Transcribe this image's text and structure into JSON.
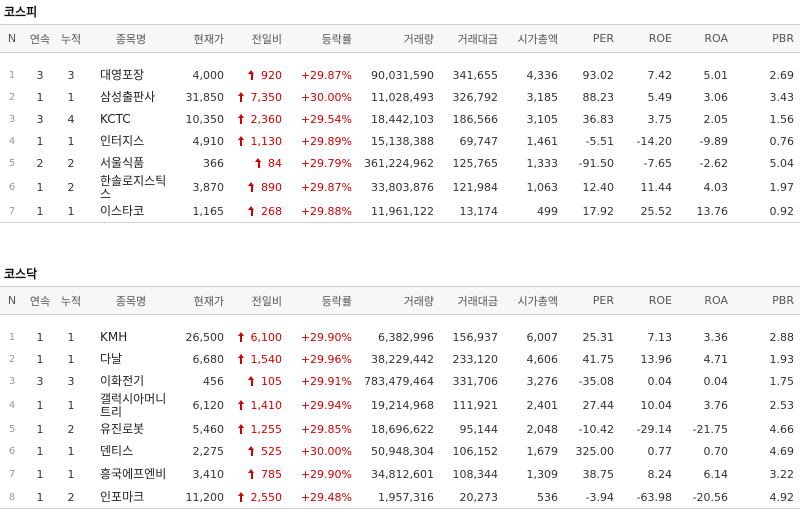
{
  "headers": [
    "N",
    "연속",
    "누적",
    "종목명",
    "현재가",
    "전일비",
    "등락률",
    "거래량",
    "거래대금",
    "시가총액",
    "PER",
    "ROE",
    "ROA",
    "PBR"
  ],
  "kospi": {
    "title": "코스피",
    "rows": [
      {
        "n": "1",
        "cont": "3",
        "cum": "3",
        "name": "대영포장",
        "price": "4,000",
        "diff": "920",
        "rate": "+29.87%",
        "volume": "90,031,590",
        "amount": "341,655",
        "mcap": "4,336",
        "per": "93.02",
        "roe": "7.42",
        "roa": "5.01",
        "pbr": "2.69"
      },
      {
        "n": "2",
        "cont": "1",
        "cum": "1",
        "name": "삼성출판사",
        "price": "31,850",
        "diff": "7,350",
        "rate": "+30.00%",
        "volume": "11,028,493",
        "amount": "326,792",
        "mcap": "3,185",
        "per": "88.23",
        "roe": "5.49",
        "roa": "3.06",
        "pbr": "3.43"
      },
      {
        "n": "3",
        "cont": "3",
        "cum": "4",
        "name": "KCTC",
        "price": "10,350",
        "diff": "2,360",
        "rate": "+29.54%",
        "volume": "18,442,103",
        "amount": "186,566",
        "mcap": "3,105",
        "per": "36.83",
        "roe": "3.75",
        "roa": "2.05",
        "pbr": "1.56"
      },
      {
        "n": "4",
        "cont": "1",
        "cum": "1",
        "name": "인터지스",
        "price": "4,910",
        "diff": "1,130",
        "rate": "+29.89%",
        "volume": "15,138,388",
        "amount": "69,747",
        "mcap": "1,461",
        "per": "-5.51",
        "roe": "-14.20",
        "roa": "-9.89",
        "pbr": "0.76"
      },
      {
        "n": "5",
        "cont": "2",
        "cum": "2",
        "name": "서울식품",
        "price": "366",
        "diff": "84",
        "rate": "+29.79%",
        "volume": "361,224,962",
        "amount": "125,765",
        "mcap": "1,333",
        "per": "-91.50",
        "roe": "-7.65",
        "roa": "-2.62",
        "pbr": "5.04"
      },
      {
        "n": "6",
        "cont": "1",
        "cum": "2",
        "name": "한솔로지스틱스",
        "price": "3,870",
        "diff": "890",
        "rate": "+29.87%",
        "volume": "33,803,876",
        "amount": "121,984",
        "mcap": "1,063",
        "per": "12.40",
        "roe": "11.44",
        "roa": "4.03",
        "pbr": "1.97"
      },
      {
        "n": "7",
        "cont": "1",
        "cum": "1",
        "name": "이스타코",
        "price": "1,165",
        "diff": "268",
        "rate": "+29.88%",
        "volume": "11,961,122",
        "amount": "13,174",
        "mcap": "499",
        "per": "17.92",
        "roe": "25.52",
        "roa": "13.76",
        "pbr": "0.92"
      }
    ]
  },
  "kosdaq": {
    "title": "코스닥",
    "rows": [
      {
        "n": "1",
        "cont": "1",
        "cum": "1",
        "name": "KMH",
        "price": "26,500",
        "diff": "6,100",
        "rate": "+29.90%",
        "volume": "6,382,996",
        "amount": "156,937",
        "mcap": "6,007",
        "per": "25.31",
        "roe": "7.13",
        "roa": "3.36",
        "pbr": "2.88"
      },
      {
        "n": "2",
        "cont": "1",
        "cum": "1",
        "name": "다날",
        "price": "6,680",
        "diff": "1,540",
        "rate": "+29.96%",
        "volume": "38,229,442",
        "amount": "233,120",
        "mcap": "4,606",
        "per": "41.75",
        "roe": "13.96",
        "roa": "4.71",
        "pbr": "1.93"
      },
      {
        "n": "3",
        "cont": "3",
        "cum": "3",
        "name": "이화전기",
        "price": "456",
        "diff": "105",
        "rate": "+29.91%",
        "volume": "783,479,464",
        "amount": "331,706",
        "mcap": "3,276",
        "per": "-35.08",
        "roe": "0.04",
        "roa": "0.04",
        "pbr": "1.75"
      },
      {
        "n": "4",
        "cont": "1",
        "cum": "1",
        "name": "갤럭시아머니트리",
        "price": "6,120",
        "diff": "1,410",
        "rate": "+29.94%",
        "volume": "19,214,968",
        "amount": "111,921",
        "mcap": "2,401",
        "per": "27.44",
        "roe": "10.04",
        "roa": "3.76",
        "pbr": "2.53"
      },
      {
        "n": "5",
        "cont": "1",
        "cum": "2",
        "name": "유진로봇",
        "price": "5,460",
        "diff": "1,255",
        "rate": "+29.85%",
        "volume": "18,696,622",
        "amount": "95,144",
        "mcap": "2,048",
        "per": "-10.42",
        "roe": "-29.14",
        "roa": "-21.75",
        "pbr": "4.66"
      },
      {
        "n": "6",
        "cont": "1",
        "cum": "1",
        "name": "덴티스",
        "price": "2,275",
        "diff": "525",
        "rate": "+30.00%",
        "volume": "50,948,304",
        "amount": "106,152",
        "mcap": "1,679",
        "per": "325.00",
        "roe": "0.77",
        "roa": "0.70",
        "pbr": "4.69"
      },
      {
        "n": "7",
        "cont": "1",
        "cum": "1",
        "name": "흥국에프엔비",
        "price": "3,410",
        "diff": "785",
        "rate": "+29.90%",
        "volume": "34,812,601",
        "amount": "108,344",
        "mcap": "1,309",
        "per": "38.75",
        "roe": "8.24",
        "roa": "6.14",
        "pbr": "3.22"
      },
      {
        "n": "8",
        "cont": "1",
        "cum": "2",
        "name": "인포마크",
        "price": "11,200",
        "diff": "2,550",
        "rate": "+29.48%",
        "volume": "1,957,316",
        "amount": "20,273",
        "mcap": "536",
        "per": "-3.94",
        "roe": "-63.98",
        "roa": "-20.56",
        "pbr": "4.92"
      }
    ]
  }
}
